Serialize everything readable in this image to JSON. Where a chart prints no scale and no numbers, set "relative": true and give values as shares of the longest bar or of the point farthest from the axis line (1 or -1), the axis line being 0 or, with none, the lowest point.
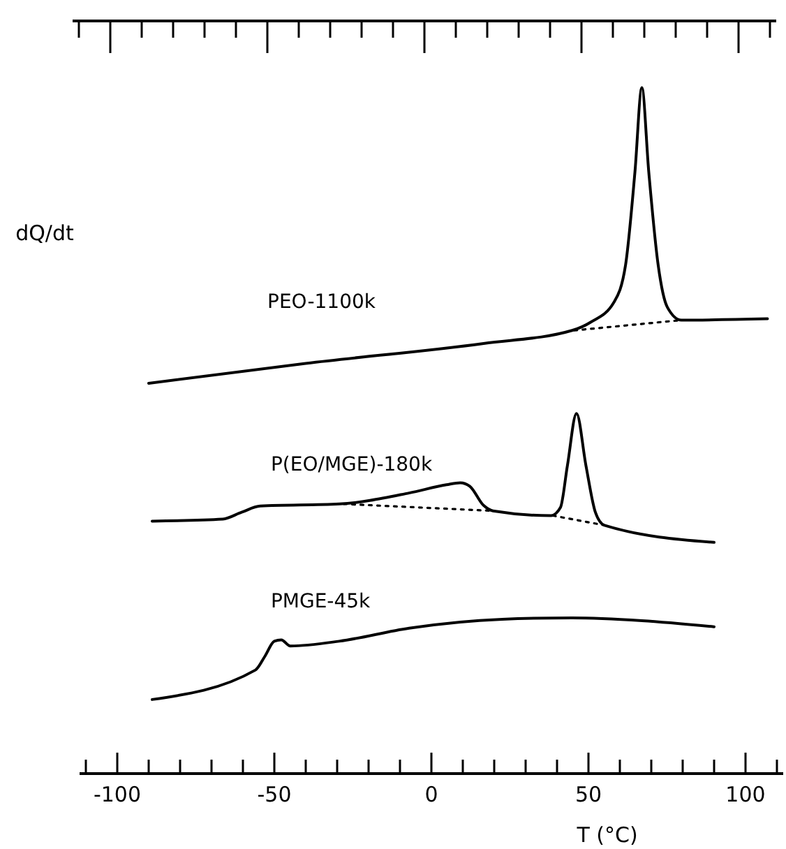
{
  "chart_data": {
    "type": "line",
    "relative": true,
    "ylabel": "dQ/dt",
    "xlabel": "T (°C)",
    "xlim": [
      -112,
      112
    ],
    "xticks": [
      {
        "value": -100,
        "label": "-100"
      },
      {
        "value": -50,
        "label": "-50"
      },
      0,
      50,
      100
    ],
    "tick_labels": "x",
    "grid": false,
    "legend": false,
    "marker": "none",
    "series": [
      {
        "name": "PEO-1100k",
        "color": "#000000",
        "line_style": "solid",
        "x": [
          -90,
          -40,
          16.6,
          44.8,
          50.7,
          58.1,
          61.8,
          64.8,
          67,
          69.2,
          72.2,
          75.1,
          79.6,
          107
        ],
        "values": [
          0.569,
          0.598,
          0.627,
          0.646,
          0.658,
          0.687,
          0.741,
          0.877,
          1,
          0.877,
          0.741,
          0.68,
          0.661,
          0.663
        ]
      },
      {
        "name": "P(EO/MGE)-180k",
        "color": "#000000",
        "line_style": "solid",
        "x": [
          -88.9,
          -66.4,
          -60.4,
          -54.5,
          -29.3,
          -7.1,
          4.8,
          9.2,
          12.2,
          16.6,
          19.6,
          38.1,
          41.1,
          43.3,
          46.2,
          49.2,
          52.2,
          55.1,
          90
        ],
        "values": [
          0.368,
          0.371,
          0.381,
          0.39,
          0.393,
          0.409,
          0.421,
          0.424,
          0.419,
          0.391,
          0.383,
          0.376,
          0.388,
          0.449,
          0.525,
          0.449,
          0.381,
          0.362,
          0.337
        ]
      },
      {
        "name": "PMGE-45k",
        "color": "#000000",
        "line_style": "solid",
        "x": [
          -88.9,
          -56,
          -53,
          -50,
          -47.8,
          -44.9,
          -29.3,
          -7.1,
          22.5,
          44.8,
          67,
          90
        ],
        "values": [
          0.108,
          0.151,
          0.171,
          0.193,
          0.195,
          0.186,
          0.193,
          0.212,
          0.225,
          0.227,
          0.223,
          0.214
        ]
      },
      {
        "color": "#000000",
        "line_style": "dotted",
        "x": [
          45.5,
          79.6
        ],
        "values": [
          0.646,
          0.661
        ]
      },
      {
        "color": "#000000",
        "line_style": "dotted",
        "x": [
          -27.9,
          19.6
        ],
        "values": [
          0.393,
          0.383
        ]
      },
      {
        "color": "#000000",
        "line_style": "dotted",
        "x": [
          38.7,
          55.1
        ],
        "values": [
          0.376,
          0.362
        ]
      }
    ]
  }
}
